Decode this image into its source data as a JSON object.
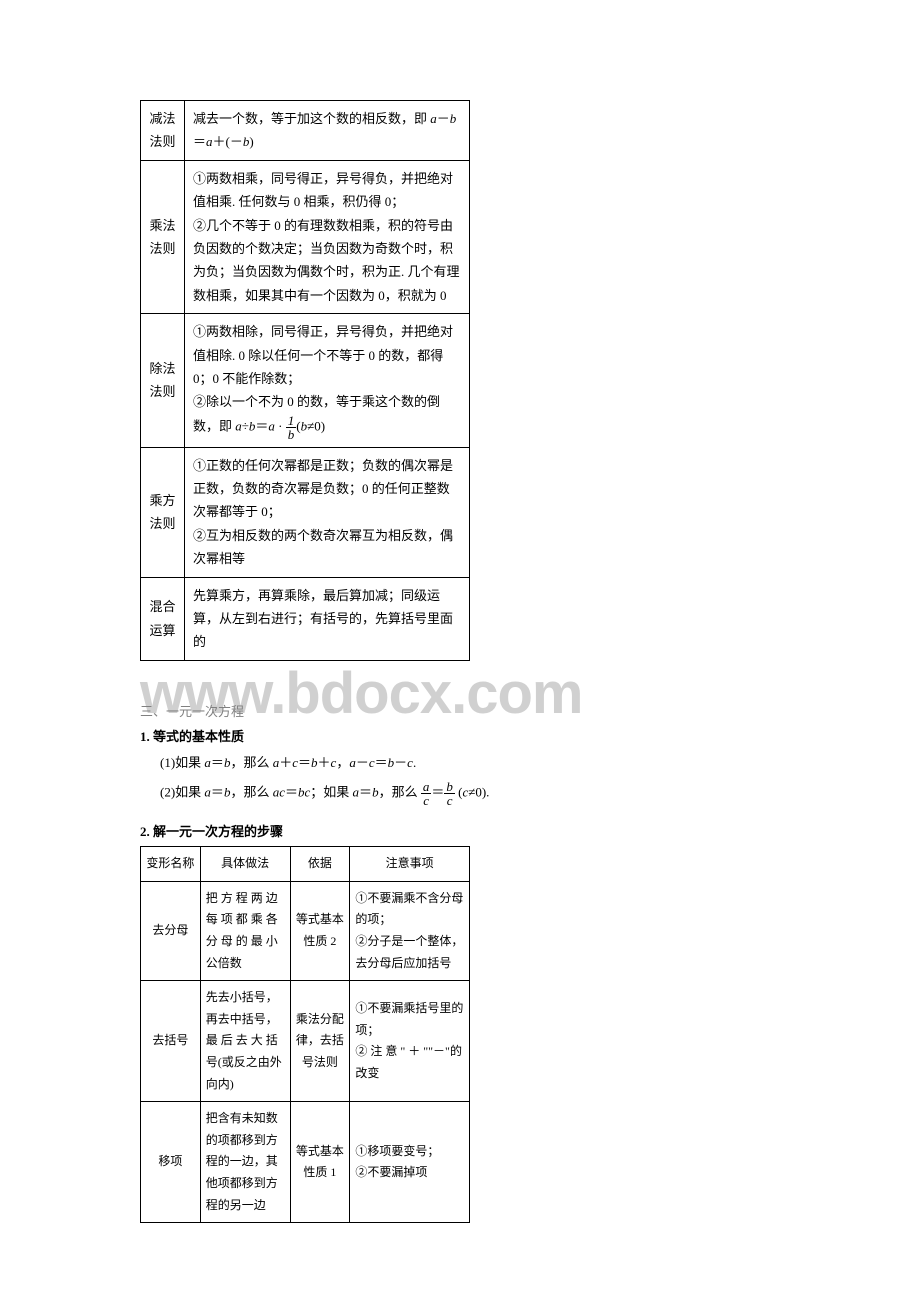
{
  "table1": {
    "rows": [
      {
        "label": "减法\n法则",
        "content_parts": [
          "减去一个数，等于加这个数的相反数，即 ",
          "ITALIC:a",
          "－",
          "ITALIC:b",
          "\n＝",
          "ITALIC:a",
          "＋(－",
          "ITALIC:b",
          ")"
        ]
      },
      {
        "label": "乘法\n法则",
        "content_parts": [
          "①两数相乘，同号得正，异号得负，并把绝对值相乘. 任何数与 0 相乘，积仍得 0；\n②几个不等于 0 的有理数数相乘，积的符号由负因数的个数决定；当负因数为奇数个时，积为负；当负因数为偶数个时，积为正. 几个有理数相乘，如果其中有一个因数为 0，积就为 0"
        ]
      },
      {
        "label": "除法\n法则",
        "content_parts": [
          "①两数相除，同号得正，异号得负，并把绝对值相除. 0 除以任何一个不等于 0 的数，都得 0；0 不能作除数；\n②除以一个不为 0 的数，等于乘这个数的倒数，即 ",
          "ITALIC:a",
          "÷",
          "ITALIC:b",
          "＝",
          "ITALIC:a",
          " · ",
          "FRAC:1:b",
          "(",
          "ITALIC:b",
          "≠0)"
        ]
      },
      {
        "label": "乘方\n法则",
        "content_parts": [
          "①正数的任何次幂都是正数；负数的偶次幂是正数，负数的奇次幂是负数；0 的任何正整数次幂都等于 0；\n②互为相反数的两个数奇次幂互为相反数，偶次幂相等"
        ]
      },
      {
        "label": "混合\n运算",
        "content_parts": [
          "先算乘方，再算乘除，最后算加减；同级运算，从左到右进行；有括号的，先算括号里面的"
        ]
      }
    ]
  },
  "section3": {
    "title": "三、一元一次方程",
    "sub1": {
      "title": "1. 等式的基本性质",
      "line1_parts": [
        "(1)如果 ",
        "ITALIC:a",
        "＝",
        "ITALIC:b",
        "，那么 ",
        "ITALIC:a",
        "＋",
        "ITALIC:c",
        "＝",
        "ITALIC:b",
        "＋",
        "ITALIC:c",
        "，",
        "ITALIC:a",
        "－",
        "ITALIC:c",
        "＝",
        "ITALIC:b",
        "－",
        "ITALIC:c",
        "."
      ],
      "line2_parts": [
        "(2)如果 ",
        "ITALIC:a",
        "＝",
        "ITALIC:b",
        "，那么 ",
        "ITALIC:ac",
        "＝",
        "ITALIC:bc",
        "；如果 ",
        "ITALIC:a",
        "＝",
        "ITALIC:b",
        "，那么 ",
        "FRAC:a:c",
        "＝",
        "FRAC:b:c",
        " (",
        "ITALIC:c",
        "≠0)."
      ]
    },
    "sub2": {
      "title": "2. 解一元一次方程的步骤"
    }
  },
  "table2": {
    "header": [
      "变形名称",
      "具体做法",
      "依据",
      "注意事项"
    ],
    "rows": [
      {
        "c1": "去分母",
        "c2": "把 方 程 两 边每 项 都 乘 各分 母 的 最 小公倍数",
        "c3": "等式基本性质 2",
        "c4": "①不要漏乘不含分母的项；\n②分子是一个整体，去分母后应加括号"
      },
      {
        "c1": "去括号",
        "c2": "先去小括号，再去中括号，最 后 去 大 括号(或反之由外向内)",
        "c3": "乘法分配律，去括号法则",
        "c4": "①不要漏乘括号里的项；\n② 注 意 \" ＋ \"\"－\"的改变"
      },
      {
        "c1": "移项",
        "c2": "把含有未知数的项都移到方程的一边，其他项都移到方程的另一边",
        "c3": "等式基本性质 1",
        "c4": "①移项要变号；\n②不要漏掉项"
      }
    ]
  },
  "watermark": "www.bdocx.com"
}
